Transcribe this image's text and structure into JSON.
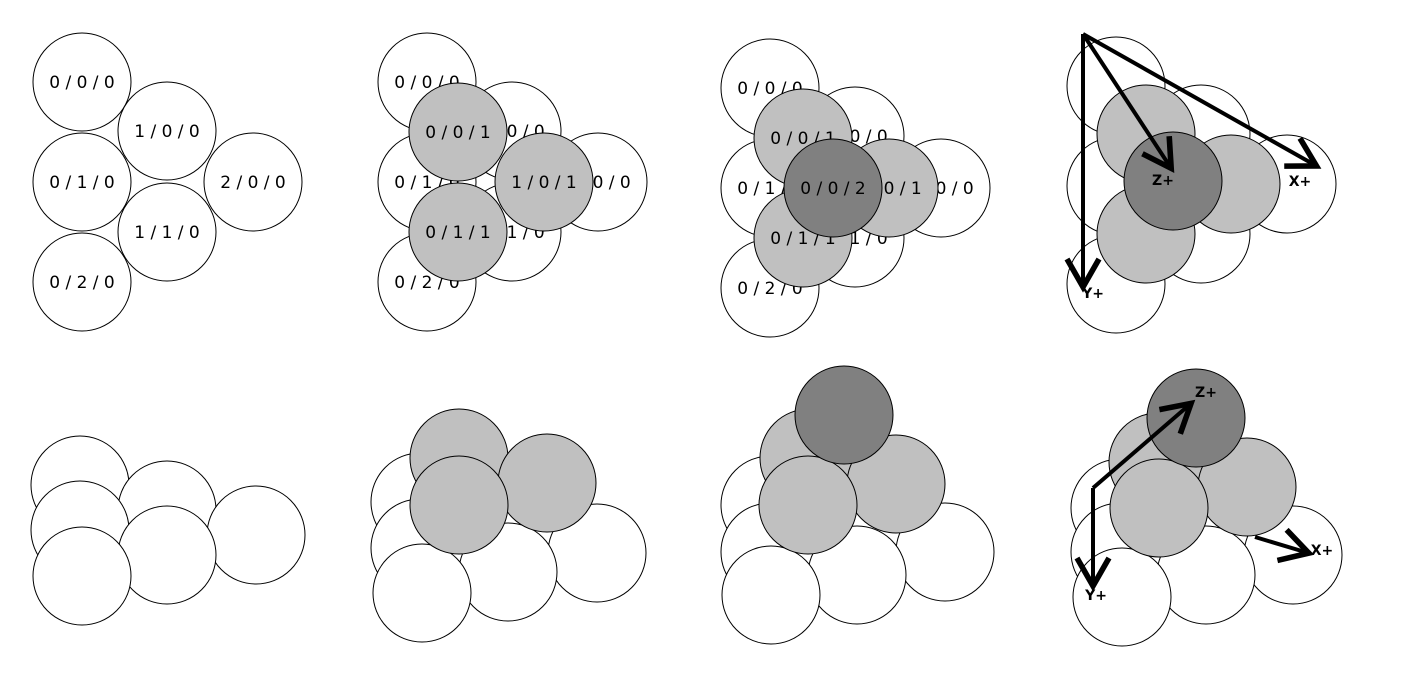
{
  "colors": {
    "layer0": "#ffffff",
    "layer1": "#c0c0c0",
    "layer2": "#808080",
    "stroke": "#000000"
  },
  "panels": [
    {
      "id": "top-1",
      "view": "top",
      "spheres": [
        {
          "layer": 0,
          "label": "0 / 0 / 0"
        },
        {
          "layer": 0,
          "label": "1 / 0 / 0"
        },
        {
          "layer": 0,
          "label": "0 / 1 / 0"
        },
        {
          "layer": 0,
          "label": "2 / 0 / 0"
        },
        {
          "layer": 0,
          "label": "1 / 1 / 0"
        },
        {
          "layer": 0,
          "label": "0 / 2 / 0"
        }
      ]
    },
    {
      "id": "top-2",
      "view": "top",
      "spheres": [
        {
          "layer": 0,
          "label": "0 / 0 / 0"
        },
        {
          "layer": 0,
          "label": "1 / 0 / 0"
        },
        {
          "layer": 0,
          "label": "0 / 1 / 0"
        },
        {
          "layer": 0,
          "label": "2 / 0 / 0"
        },
        {
          "layer": 0,
          "label": "1 / 1 / 0"
        },
        {
          "layer": 0,
          "label": "0 / 2 / 0"
        },
        {
          "layer": 1,
          "label": "0 / 0 / 1"
        },
        {
          "layer": 1,
          "label": "1 / 0 / 1"
        },
        {
          "layer": 1,
          "label": "0 / 1 / 1"
        }
      ]
    },
    {
      "id": "top-3",
      "view": "top",
      "spheres": [
        {
          "layer": 0,
          "label": "0 / 0 / 0"
        },
        {
          "layer": 0,
          "label": "1 / 0 / 0"
        },
        {
          "layer": 0,
          "label": "0 / 1 / 0"
        },
        {
          "layer": 0,
          "label": "2 / 0 / 0"
        },
        {
          "layer": 0,
          "label": "1 / 1 / 0"
        },
        {
          "layer": 0,
          "label": "0 / 2 / 0"
        },
        {
          "layer": 1,
          "label": "0 / 0 / 1"
        },
        {
          "layer": 1,
          "label": "1 / 0 / 1"
        },
        {
          "layer": 1,
          "label": "0 / 1 / 1"
        },
        {
          "layer": 2,
          "label": "0 / 0 / 2"
        }
      ]
    },
    {
      "id": "top-4",
      "view": "top-axes",
      "spheres": [
        {
          "layer": 0
        },
        {
          "layer": 0
        },
        {
          "layer": 0
        },
        {
          "layer": 0
        },
        {
          "layer": 0
        },
        {
          "layer": 0
        },
        {
          "layer": 1
        },
        {
          "layer": 1
        },
        {
          "layer": 1
        },
        {
          "layer": 2
        }
      ],
      "axes": [
        {
          "name": "x-axis",
          "label": "X+"
        },
        {
          "name": "y-axis",
          "label": "Y+"
        },
        {
          "name": "z-axis",
          "label": "Z+"
        }
      ]
    },
    {
      "id": "side-1",
      "view": "side",
      "spheres": [
        {
          "layer": 0
        },
        {
          "layer": 0
        },
        {
          "layer": 0
        },
        {
          "layer": 0
        },
        {
          "layer": 0
        },
        {
          "layer": 0
        }
      ]
    },
    {
      "id": "side-2",
      "view": "side",
      "spheres": [
        {
          "layer": 0
        },
        {
          "layer": 0
        },
        {
          "layer": 0
        },
        {
          "layer": 0
        },
        {
          "layer": 0
        },
        {
          "layer": 0
        },
        {
          "layer": 1
        },
        {
          "layer": 1
        },
        {
          "layer": 1
        }
      ]
    },
    {
      "id": "side-3",
      "view": "side",
      "spheres": [
        {
          "layer": 0
        },
        {
          "layer": 0
        },
        {
          "layer": 0
        },
        {
          "layer": 0
        },
        {
          "layer": 0
        },
        {
          "layer": 0
        },
        {
          "layer": 1
        },
        {
          "layer": 1
        },
        {
          "layer": 1
        },
        {
          "layer": 2
        }
      ]
    },
    {
      "id": "side-4",
      "view": "side-axes",
      "spheres": [
        {
          "layer": 0
        },
        {
          "layer": 0
        },
        {
          "layer": 0
        },
        {
          "layer": 0
        },
        {
          "layer": 0
        },
        {
          "layer": 0
        },
        {
          "layer": 1
        },
        {
          "layer": 1
        },
        {
          "layer": 1
        },
        {
          "layer": 2
        }
      ],
      "axes": [
        {
          "name": "x-axis",
          "label": "X+"
        },
        {
          "name": "y-axis",
          "label": "Y+"
        },
        {
          "name": "z-axis",
          "label": "Z+"
        }
      ]
    }
  ]
}
